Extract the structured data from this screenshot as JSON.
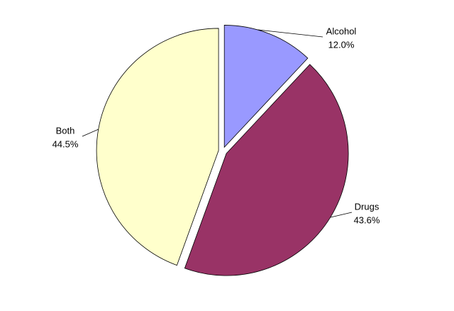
{
  "chart_data": {
    "type": "pie",
    "categories": [
      "Alcohol",
      "Drugs",
      "Both"
    ],
    "values": [
      12.0,
      43.6,
      44.5
    ],
    "value_labels": [
      "12.0%",
      "43.6%",
      "44.5%"
    ],
    "colors": [
      "#9999ff",
      "#993366",
      "#ffffcc"
    ]
  }
}
